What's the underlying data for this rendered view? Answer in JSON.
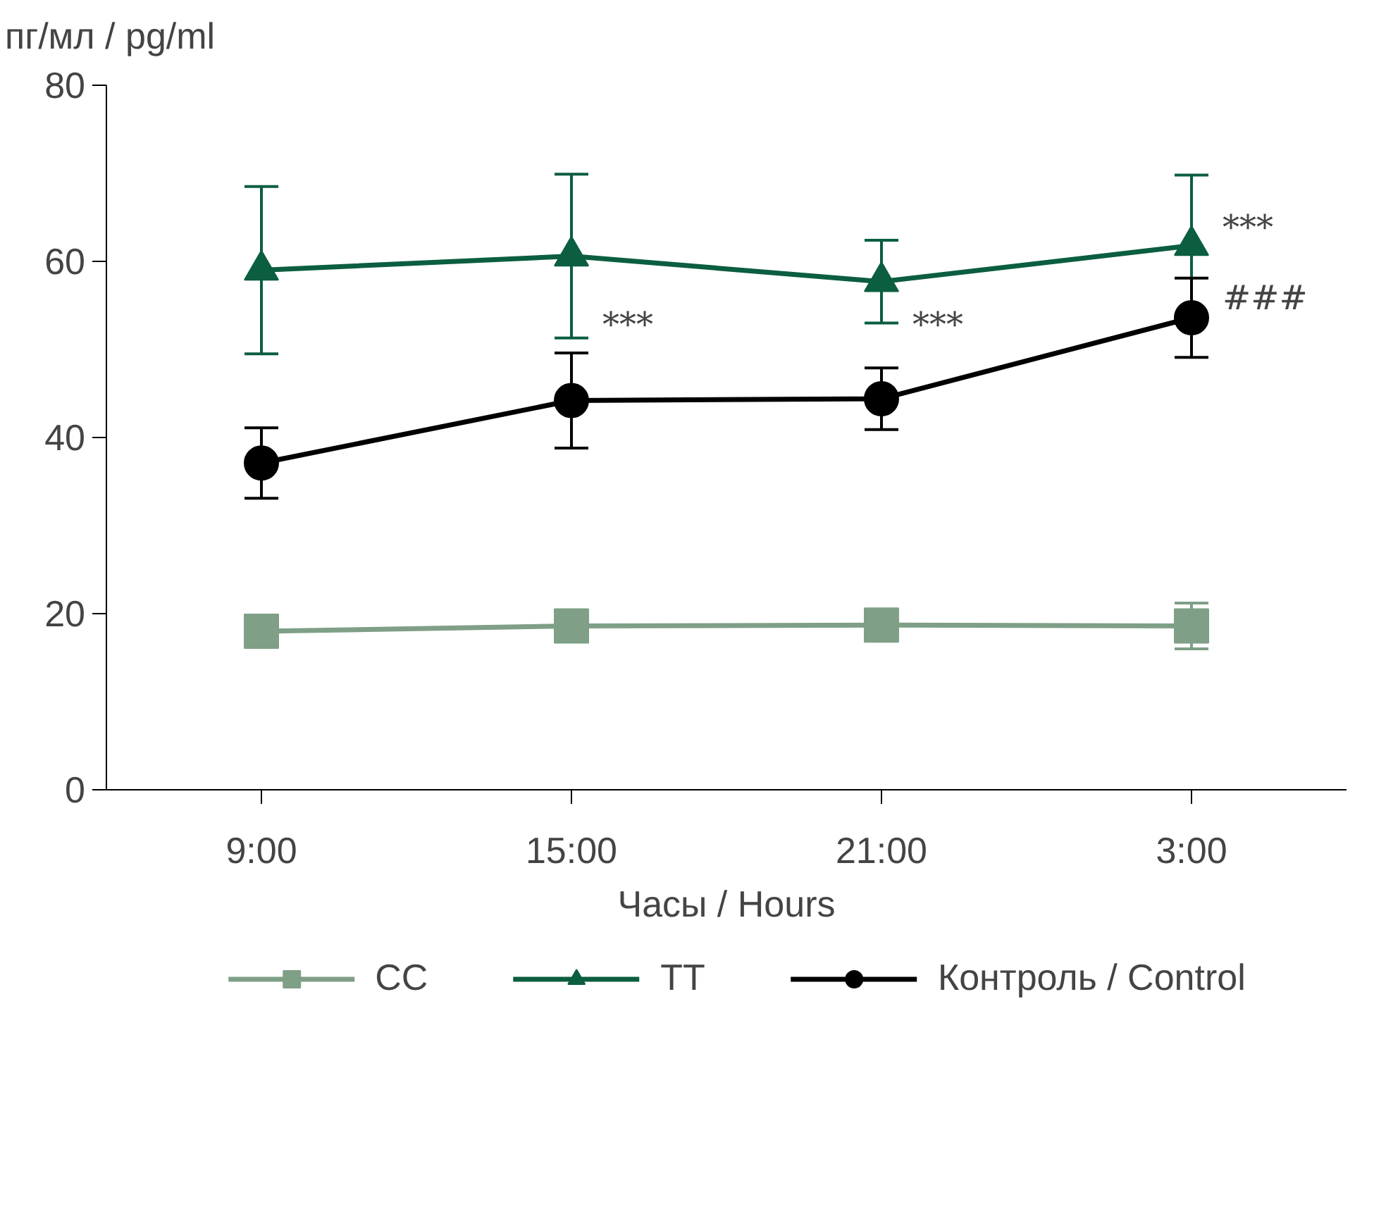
{
  "chart_data": {
    "type": "line",
    "ylabel": "пг/мл / pg/ml",
    "xlabel": "Часы / Hours",
    "categories": [
      "9:00",
      "15:00",
      "21:00",
      "3:00"
    ],
    "series": [
      {
        "name": "CC",
        "color": "#7f9f87",
        "marker": "square",
        "values": [
          18.0,
          18.6,
          18.7,
          18.6
        ],
        "errors": [
          null,
          null,
          null,
          2.6
        ]
      },
      {
        "name": "TT",
        "color": "#0b5e3f",
        "marker": "triangle",
        "values": [
          59.0,
          60.6,
          57.7,
          61.8
        ],
        "errors": [
          9.5,
          9.3,
          4.7,
          8.0
        ]
      },
      {
        "name": "Контроль / Control",
        "color": "#000000",
        "marker": "circle",
        "values": [
          37.1,
          44.2,
          44.4,
          53.6
        ],
        "errors": [
          4.0,
          5.4,
          3.5,
          4.5
        ]
      }
    ],
    "ylim": [
      0,
      80
    ],
    "yticks": [
      0,
      20,
      40,
      60,
      80
    ],
    "grid": false,
    "legend": "bottom",
    "annotations": [
      {
        "text": "***",
        "x": "15:00",
        "y": 52.5
      },
      {
        "text": "***",
        "x": "21:00",
        "y": 52.5
      },
      {
        "text": "***",
        "x": "3:00",
        "y": 63.5
      },
      {
        "text": "###",
        "x": "3:00",
        "y": 55.5
      }
    ]
  }
}
